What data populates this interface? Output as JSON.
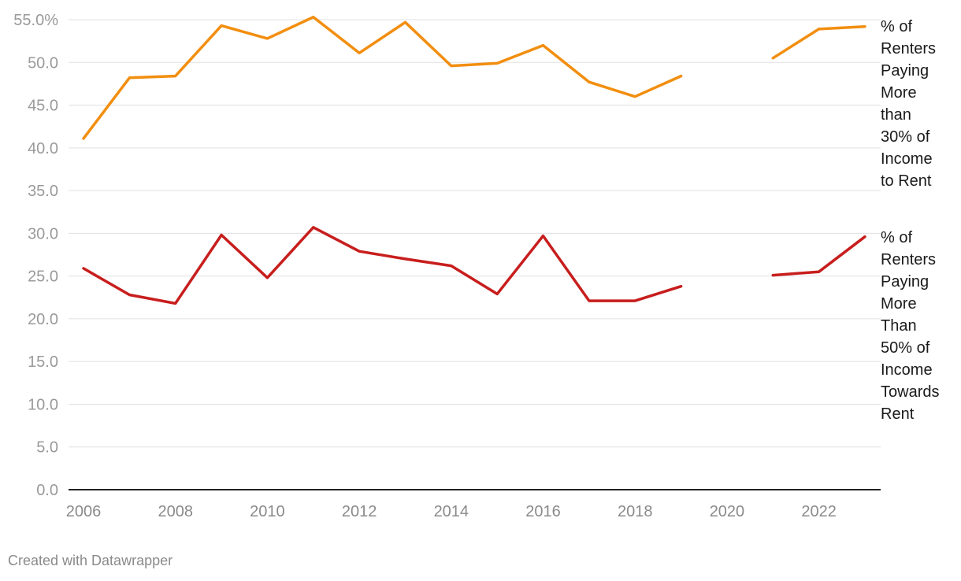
{
  "chart_data": {
    "type": "line",
    "x": [
      2006,
      2007,
      2008,
      2009,
      2010,
      2011,
      2012,
      2013,
      2014,
      2015,
      2016,
      2017,
      2018,
      2019,
      2020,
      2021,
      2022,
      2023
    ],
    "series": [
      {
        "name": "% of Renters Paying More than 30% of Income to Rent",
        "color": "#f28e0f",
        "values": [
          41.1,
          48.2,
          48.4,
          54.3,
          52.8,
          55.3,
          51.1,
          54.7,
          49.6,
          49.9,
          52.0,
          47.7,
          46.0,
          48.4,
          null,
          50.5,
          53.9,
          54.2
        ]
      },
      {
        "name": "% of Renters Paying More Than 50% of Income Towards Rent",
        "color": "#c71e1d",
        "values": [
          25.9,
          22.8,
          21.8,
          29.8,
          24.8,
          30.7,
          27.9,
          27.0,
          26.2,
          22.9,
          29.7,
          22.1,
          22.1,
          23.8,
          null,
          25.1,
          25.5,
          29.6
        ]
      }
    ],
    "ylim": [
      0,
      55
    ],
    "y_ticks": [
      "0.0",
      "5.0",
      "10.0",
      "15.0",
      "20.0",
      "25.0",
      "30.0",
      "35.0",
      "40.0",
      "45.0",
      "50.0",
      "55.0%"
    ],
    "x_ticks": [
      "2006",
      "2008",
      "2010",
      "2012",
      "2014",
      "2016",
      "2018",
      "2020",
      "2022"
    ],
    "grid": true,
    "legend_placement": "right, inline at line ends"
  },
  "labels": {
    "series1": [
      "% of",
      "Renters",
      "Paying",
      "More",
      "than",
      "30% of",
      "Income",
      "to Rent"
    ],
    "series2": [
      "% of",
      "Renters",
      "Paying",
      "More",
      "Than",
      "50% of",
      "Income",
      "Towards",
      "Rent"
    ]
  },
  "footer": "Created with Datawrapper"
}
